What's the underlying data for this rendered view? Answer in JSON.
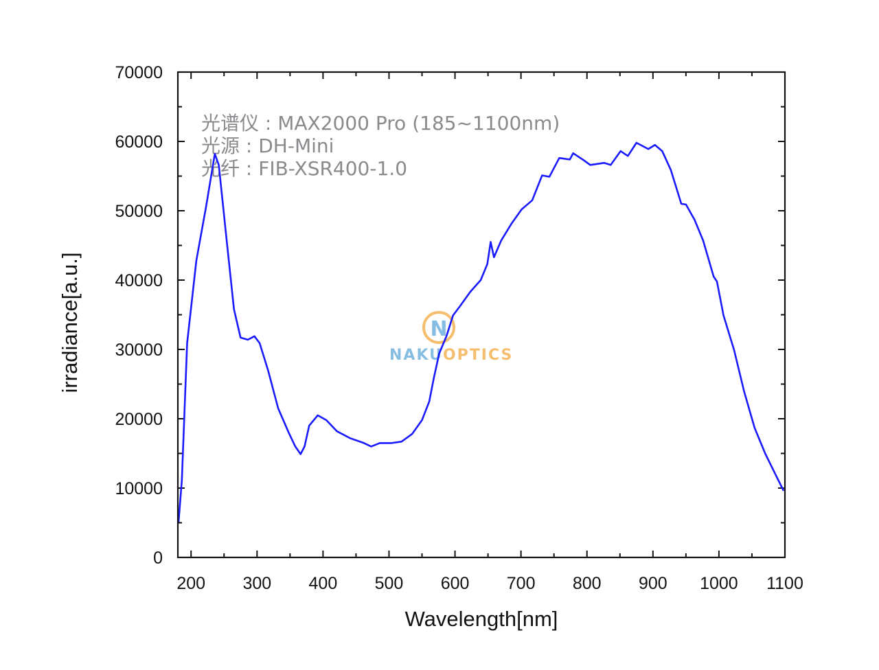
{
  "chart_data": {
    "type": "line",
    "title": "",
    "xlabel": "Wavelength[nm]",
    "ylabel": "irradiance[a.u.]",
    "xlim": [
      180,
      1100
    ],
    "ylim": [
      0,
      70000
    ],
    "x_ticks": [
      200,
      300,
      400,
      500,
      600,
      700,
      800,
      900,
      1000,
      1100
    ],
    "y_ticks": [
      0,
      10000,
      20000,
      30000,
      40000,
      50000,
      60000,
      70000
    ],
    "x_tick_labels": [
      "200",
      "300",
      "400",
      "500",
      "600",
      "700",
      "800",
      "900",
      "1000",
      "1100"
    ],
    "y_tick_labels": [
      "0",
      "10000",
      "20000",
      "30000",
      "40000",
      "50000",
      "60000",
      "70000"
    ],
    "grid": false,
    "line_color": "#1a1aff",
    "annotations": [
      "光谱仪 : MAX2000 Pro (185~1100nm)",
      "光源 : DH-Mini",
      "光纤 : FIB-XSR400-1.0"
    ],
    "series": [
      {
        "x": [
          181,
          186,
          194,
          208,
          223,
          236,
          242,
          254,
          265,
          275,
          286,
          296,
          304,
          317,
          332,
          348,
          358,
          366,
          372,
          379,
          392,
          405,
          421,
          441,
          462,
          473,
          486,
          504,
          519,
          535,
          550,
          561,
          568,
          576,
          587,
          597,
          608,
          623,
          639,
          649,
          654,
          659,
          670,
          686,
          701,
          717,
          732,
          743,
          758,
          774,
          779,
          795,
          805,
          826,
          836,
          851,
          862,
          875,
          893,
          903,
          914,
          927,
          943,
          950,
          963,
          976,
          992,
          997,
          1007,
          1023,
          1038,
          1054,
          1070,
          1085,
          1098
        ],
        "y": [
          5100,
          11100,
          30900,
          42800,
          50700,
          58200,
          56600,
          45700,
          35800,
          31700,
          31400,
          31900,
          30900,
          26900,
          21500,
          18000,
          16000,
          14900,
          16000,
          19000,
          20500,
          19800,
          18200,
          17200,
          16500,
          16000,
          16500,
          16500,
          16700,
          17800,
          19800,
          22500,
          25900,
          29400,
          31900,
          34900,
          36300,
          38300,
          40000,
          42300,
          45500,
          43300,
          45700,
          48200,
          50200,
          51500,
          55100,
          54900,
          57600,
          57400,
          58300,
          57300,
          56600,
          56900,
          56600,
          58600,
          57900,
          59800,
          58900,
          59500,
          58600,
          55900,
          51000,
          50900,
          48700,
          45700,
          40500,
          39800,
          34900,
          29900,
          24000,
          18700,
          15000,
          12100,
          9600
        ]
      }
    ]
  },
  "watermark": {
    "text_left": "NAKU",
    "text_right": "OPTICS",
    "monogram": "N",
    "color_blue": "#7ab8e0",
    "color_orange": "#f5b860"
  }
}
